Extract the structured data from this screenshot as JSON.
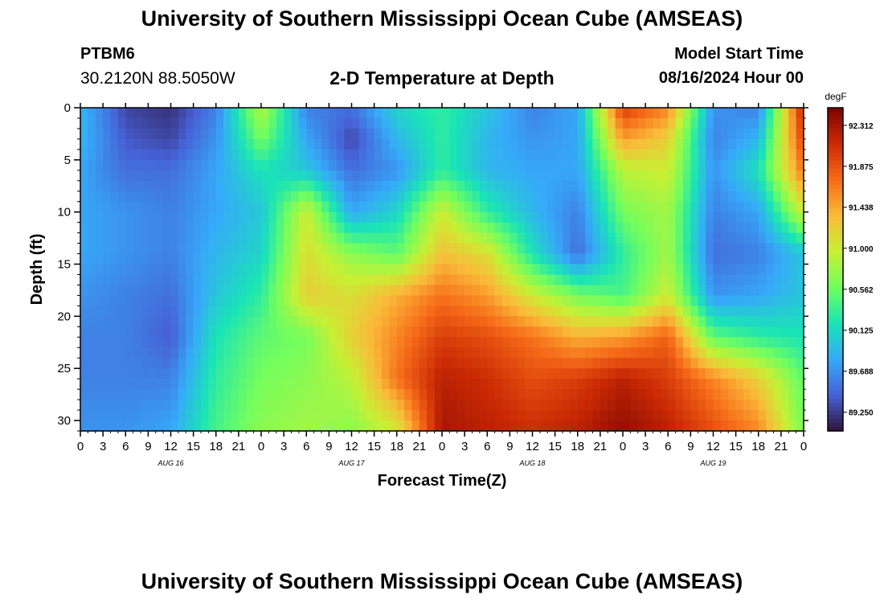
{
  "header": {
    "title": "University of Southern Mississippi Ocean Cube (AMSEAS)",
    "station": "PTBM6",
    "coords": "30.2120N  88.5050W",
    "subtitle": "2-D Temperature at Depth",
    "start_label": "Model Start Time",
    "start_value": "08/16/2024 Hour 00"
  },
  "footer": {
    "title": "University of Southern Mississippi Ocean Cube (AMSEAS)"
  },
  "chart_data": {
    "type": "heatmap",
    "title": "2-D Temperature at Depth",
    "xlabel": "Forecast Time(Z)",
    "ylabel": "Depth (ft)",
    "x_unit": "hours since model start",
    "xlim": [
      0,
      96
    ],
    "ylim": [
      0,
      31
    ],
    "x_ticks": [
      0,
      3,
      6,
      9,
      12,
      15,
      18,
      21,
      24,
      27,
      30,
      33,
      36,
      39,
      42,
      45,
      48,
      51,
      54,
      57,
      60,
      63,
      66,
      69,
      72,
      75,
      78,
      81,
      84,
      87,
      90,
      93,
      96
    ],
    "x_tick_labels": [
      "0",
      "3",
      "6",
      "9",
      "12",
      "15",
      "18",
      "21",
      "0",
      "3",
      "6",
      "9",
      "12",
      "15",
      "18",
      "21",
      "0",
      "3",
      "6",
      "9",
      "12",
      "15",
      "18",
      "21",
      "0",
      "3",
      "6",
      "9",
      "12",
      "15",
      "18",
      "21",
      "0"
    ],
    "y_ticks": [
      0,
      5,
      10,
      15,
      20,
      25,
      30
    ],
    "y_tick_labels": [
      "0",
      "5",
      "10",
      "15",
      "20",
      "25",
      "30"
    ],
    "date_labels": [
      {
        "text": "AUG 16",
        "hour": 12
      },
      {
        "text": "AUG 17",
        "hour": 36
      },
      {
        "text": "AUG 18",
        "hour": 60
      },
      {
        "text": "AUG 19",
        "hour": 84
      }
    ],
    "colorbar": {
      "unit": "degF",
      "min": 89.05,
      "max": 92.5,
      "ticks": [
        89.25,
        89.688,
        90.125,
        90.562,
        91.0,
        91.438,
        91.875,
        92.312
      ],
      "tick_labels": [
        "89.250",
        "89.688",
        "90.125",
        "90.562",
        "91.000",
        "91.438",
        "91.875",
        "92.312"
      ],
      "colors": [
        "#30123b",
        "#4662d7",
        "#36aaf9",
        "#1ae4b6",
        "#72fe5e",
        "#c8ef34",
        "#faba39",
        "#f66b19",
        "#cb2a04",
        "#7a0403"
      ]
    },
    "grid_hours": [
      0,
      6,
      12,
      18,
      24,
      30,
      36,
      42,
      48,
      54,
      60,
      66,
      72,
      78,
      84,
      90,
      96
    ],
    "grid_depths": [
      0,
      3,
      6,
      10,
      14,
      18,
      22,
      26,
      31
    ],
    "values": [
      [
        89.9,
        89.3,
        89.2,
        89.6,
        90.9,
        89.6,
        89.5,
        90.1,
        90.3,
        90.0,
        89.6,
        89.8,
        92.0,
        91.6,
        89.7,
        89.6,
        92.2
      ],
      [
        89.9,
        89.4,
        89.3,
        89.7,
        90.6,
        89.8,
        89.3,
        89.9,
        90.3,
        89.9,
        89.7,
        89.8,
        91.5,
        91.2,
        89.6,
        89.9,
        92.0
      ],
      [
        89.8,
        89.5,
        89.5,
        89.8,
        90.2,
        90.0,
        89.5,
        89.7,
        90.3,
        89.9,
        89.8,
        89.8,
        90.9,
        91.0,
        89.7,
        90.2,
        91.7
      ],
      [
        89.8,
        89.7,
        89.6,
        89.8,
        90.0,
        91.0,
        89.8,
        90.1,
        91.0,
        90.3,
        89.9,
        89.6,
        90.6,
        90.8,
        89.6,
        89.8,
        91.0
      ],
      [
        89.8,
        89.7,
        89.6,
        89.9,
        90.1,
        91.1,
        90.7,
        90.5,
        91.3,
        91.1,
        90.2,
        89.5,
        90.3,
        90.8,
        89.5,
        89.6,
        90.0
      ],
      [
        89.7,
        89.6,
        89.5,
        90.0,
        90.3,
        91.2,
        91.1,
        91.4,
        91.7,
        91.5,
        91.0,
        90.6,
        90.4,
        91.0,
        89.7,
        89.8,
        90.0
      ],
      [
        89.6,
        89.6,
        89.4,
        90.2,
        90.5,
        90.6,
        91.2,
        91.6,
        92.0,
        91.9,
        91.7,
        91.4,
        91.5,
        91.8,
        90.5,
        90.3,
        90.2
      ],
      [
        89.6,
        89.6,
        89.6,
        90.3,
        90.6,
        90.7,
        90.9,
        91.7,
        92.2,
        92.1,
        91.9,
        92.0,
        92.2,
        92.0,
        91.6,
        91.2,
        90.5
      ],
      [
        89.7,
        89.7,
        89.8,
        90.4,
        90.7,
        90.8,
        90.7,
        91.0,
        92.3,
        92.2,
        92.1,
        92.2,
        92.4,
        92.2,
        91.9,
        91.6,
        90.6
      ]
    ]
  }
}
